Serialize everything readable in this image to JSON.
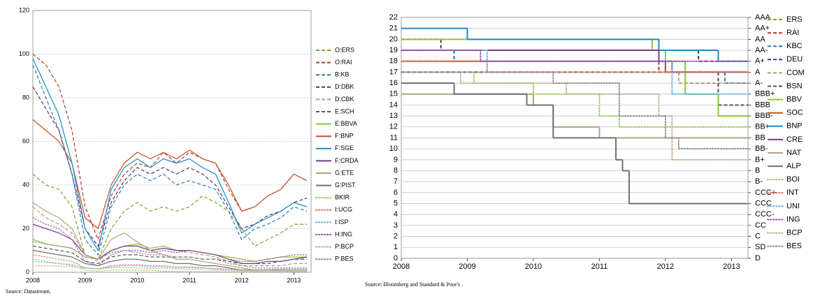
{
  "chart_data": [
    {
      "type": "line",
      "note": "Source: Datastream.",
      "x": [
        2008,
        2008.25,
        2008.5,
        2008.75,
        2009,
        2009.25,
        2009.5,
        2009.75,
        2010,
        2010.25,
        2010.5,
        2010.75,
        2011,
        2011.25,
        2011.5,
        2011.75,
        2012,
        2012.25,
        2012.5,
        2012.75,
        2013,
        2013.25
      ],
      "xlim": [
        2008,
        2013.33
      ],
      "xticks": [
        2008,
        2009,
        2010,
        2011,
        2012,
        2013
      ],
      "ylim": [
        0,
        120
      ],
      "yticks": [
        0,
        20,
        40,
        60,
        80,
        100,
        120
      ],
      "grid": true,
      "series": [
        {
          "name": "O:ERS",
          "color": "#8a9a2a",
          "style": "dashed",
          "values": [
            45,
            40,
            38,
            30,
            8,
            6,
            20,
            28,
            32,
            28,
            30,
            28,
            30,
            35,
            32,
            28,
            20,
            12,
            15,
            18,
            22,
            22
          ]
        },
        {
          "name": "O:RAI",
          "color": "#b23a2a",
          "style": "dashed",
          "values": [
            100,
            95,
            85,
            65,
            30,
            15,
            35,
            45,
            50,
            48,
            55,
            50,
            55,
            52,
            50,
            38,
            28,
            30,
            35,
            38,
            45,
            42
          ]
        },
        {
          "name": "B:KB",
          "color": "#2a7ab8",
          "style": "dashed",
          "values": [
            95,
            80,
            65,
            45,
            15,
            8,
            30,
            40,
            45,
            42,
            45,
            40,
            42,
            40,
            38,
            28,
            15,
            20,
            22,
            25,
            30,
            28
          ]
        },
        {
          "name": "D:DBK",
          "color": "#5a2a6a",
          "style": "dashed",
          "values": [
            85,
            75,
            65,
            45,
            20,
            12,
            32,
            42,
            48,
            45,
            48,
            45,
            48,
            45,
            40,
            30,
            20,
            22,
            26,
            28,
            32,
            34
          ]
        },
        {
          "name": "D:CBK",
          "color": "#b09a7a",
          "style": "dashed",
          "values": [
            30,
            25,
            22,
            18,
            8,
            5,
            10,
            12,
            12,
            10,
            11,
            10,
            9,
            8,
            7,
            5,
            3,
            3,
            3,
            3,
            4,
            4
          ]
        },
        {
          "name": "E:SCH",
          "color": "#555555",
          "style": "dashed",
          "values": [
            12,
            11,
            10,
            9,
            5,
            4,
            7,
            8,
            8,
            7,
            7,
            7,
            7,
            6,
            6,
            5,
            4,
            4,
            4,
            5,
            6,
            6
          ]
        },
        {
          "name": "E:BBVA",
          "color": "#8cc43a",
          "style": "solid",
          "values": [
            15,
            13,
            12,
            11,
            7,
            6,
            10,
            12,
            13,
            11,
            12,
            10,
            10,
            9,
            8,
            7,
            6,
            5,
            6,
            7,
            7,
            7
          ]
        },
        {
          "name": "F:BNP",
          "color": "#c0502a",
          "style": "solid",
          "values": [
            70,
            65,
            60,
            50,
            25,
            20,
            40,
            50,
            55,
            52,
            55,
            52,
            56,
            52,
            50,
            40,
            28,
            30,
            35,
            38,
            45,
            42
          ]
        },
        {
          "name": "F:SGE",
          "color": "#1a8ac8",
          "style": "solid",
          "values": [
            98,
            85,
            72,
            50,
            20,
            10,
            38,
            48,
            52,
            48,
            52,
            50,
            52,
            48,
            45,
            32,
            18,
            22,
            25,
            28,
            32,
            30
          ]
        },
        {
          "name": "F:CRDA",
          "color": "#7a3a8a",
          "style": "solid",
          "values": [
            22,
            20,
            18,
            15,
            8,
            6,
            10,
            12,
            12,
            10,
            11,
            10,
            10,
            9,
            8,
            6,
            4,
            4,
            5,
            5,
            6,
            7
          ]
        },
        {
          "name": "G:ETE",
          "color": "#b8a080",
          "style": "solid",
          "values": [
            32,
            28,
            25,
            20,
            8,
            6,
            15,
            18,
            14,
            10,
            8,
            6,
            6,
            5,
            4,
            3,
            2,
            1,
            1,
            1,
            1,
            1
          ]
        },
        {
          "name": "G:PIST",
          "color": "#707070",
          "style": "solid",
          "values": [
            10,
            9,
            8,
            7,
            4,
            3,
            5,
            6,
            6,
            5,
            5,
            4,
            4,
            3,
            3,
            2,
            1,
            1,
            1,
            1,
            1,
            1
          ]
        },
        {
          "name": "BKIR",
          "color": "#9acc60",
          "style": "dotted",
          "values": [
            6,
            5,
            4,
            3,
            1,
            0.5,
            1,
            1,
            1,
            1,
            0.5,
            0.4,
            0.3,
            0.3,
            0.3,
            0.2,
            0.2,
            0.2,
            0.2,
            0.3,
            0.3,
            0.3
          ]
        },
        {
          "name": "I:UCG",
          "color": "#e07a6a",
          "style": "dotted",
          "values": [
            8,
            7,
            6,
            5,
            2,
            1.5,
            3,
            3.5,
            3.5,
            3,
            3,
            2.5,
            2.5,
            2,
            1.5,
            1,
            1,
            1,
            1,
            1,
            1,
            1
          ]
        },
        {
          "name": "I:ISP",
          "color": "#6ab8e8",
          "style": "dotted",
          "values": [
            5,
            4.5,
            4,
            3.5,
            2,
            1.5,
            2.5,
            3,
            3,
            2.5,
            2.5,
            2,
            2,
            2,
            1.8,
            1.5,
            1.2,
            1.2,
            1.3,
            1.5,
            1.7,
            1.7
          ]
        },
        {
          "name": "H:ING",
          "color": "#9a5aa8",
          "style": "dotted",
          "values": [
            25,
            22,
            20,
            15,
            5,
            3,
            8,
            10,
            10,
            9,
            10,
            9,
            10,
            9,
            8,
            6,
            5,
            5,
            6,
            7,
            8,
            8
          ]
        },
        {
          "name": "P:BCP",
          "color": "#c8b090",
          "style": "dotted",
          "values": [
            3,
            3,
            2.8,
            2.5,
            1.8,
            1.5,
            2,
            2.2,
            2,
            1.8,
            1.8,
            1.5,
            1.3,
            1.2,
            1,
            0.8,
            0.5,
            0.5,
            0.4,
            0.4,
            0.4,
            0.4
          ]
        },
        {
          "name": "P:BES",
          "color": "#909090",
          "style": "dotted",
          "values": [
            14,
            13,
            12,
            11,
            7,
            6,
            9,
            10,
            9,
            8,
            8,
            7,
            7,
            6,
            6,
            4,
            3,
            2,
            2,
            2,
            2,
            2
          ]
        }
      ]
    },
    {
      "type": "line",
      "step": true,
      "note": "Source: Bloomberg and Standard & Poor's .",
      "xlim": [
        2008,
        2013.25
      ],
      "xticks": [
        2008,
        2009,
        2010,
        2011,
        2012,
        2013
      ],
      "ylim": [
        0,
        22
      ],
      "yticks": [
        0,
        1,
        2,
        3,
        4,
        5,
        6,
        7,
        8,
        9,
        10,
        11,
        12,
        13,
        14,
        15,
        16,
        17,
        18,
        19,
        20,
        21,
        22
      ],
      "grid": true,
      "y2lim": [
        0,
        22
      ],
      "y2ticks": [
        {
          "value": 22,
          "label": "AAA"
        },
        {
          "value": 21,
          "label": "AA+"
        },
        {
          "value": 20,
          "label": "AA"
        },
        {
          "value": 19,
          "label": "AA-"
        },
        {
          "value": 18,
          "label": "A+"
        },
        {
          "value": 17,
          "label": "A"
        },
        {
          "value": 16,
          "label": "A-"
        },
        {
          "value": 15,
          "label": "BBB+"
        },
        {
          "value": 14,
          "label": "BBB"
        },
        {
          "value": 13,
          "label": "BBB-"
        },
        {
          "value": 12,
          "label": "BB+"
        },
        {
          "value": 11,
          "label": "BB"
        },
        {
          "value": 10,
          "label": "BB-"
        },
        {
          "value": 9,
          "label": "B+"
        },
        {
          "value": 8,
          "label": "B"
        },
        {
          "value": 7,
          "label": "B-"
        },
        {
          "value": 6,
          "label": "CCC+"
        },
        {
          "value": 5,
          "label": "CCC"
        },
        {
          "value": 4,
          "label": "CCC-"
        },
        {
          "value": 3,
          "label": "CC"
        },
        {
          "value": 2,
          "label": "C"
        },
        {
          "value": 1,
          "label": "SD"
        },
        {
          "value": 0,
          "label": "D"
        }
      ],
      "series": [
        {
          "name": "ERS",
          "color": "#8a9a2a",
          "style": "dashed",
          "x": [
            2008
          ],
          "values": [
            17
          ]
        },
        {
          "name": "RAI",
          "color": "#b23a2a",
          "style": "dashed",
          "x": [
            2008,
            2011.9
          ],
          "values": [
            18,
            17
          ]
        },
        {
          "name": "KBC",
          "color": "#2a7ab8",
          "style": "dashed",
          "x": [
            2008,
            2008.8,
            2012.0,
            2012.9
          ],
          "values": [
            19,
            18,
            17,
            16
          ]
        },
        {
          "name": "DEU",
          "color": "#5a2a6a",
          "style": "dashed",
          "x": [
            2008,
            2008.6,
            2012.5
          ],
          "values": [
            20,
            19,
            18
          ]
        },
        {
          "name": "COM",
          "color": "#b09a7a",
          "style": "dashed",
          "x": [
            2008,
            2012.2
          ],
          "values": [
            17,
            16
          ]
        },
        {
          "name": "BSN",
          "color": "#555555",
          "style": "dashed",
          "x": [
            2008,
            2012.8
          ],
          "values": [
            17,
            14
          ]
        },
        {
          "name": "BBV",
          "color": "#8cc43a",
          "style": "solid",
          "x": [
            2008,
            2011.8,
            2012.0,
            2012.3,
            2012.8
          ],
          "values": [
            20,
            19,
            18,
            15,
            13
          ]
        },
        {
          "name": "SOC",
          "color": "#c0502a",
          "style": "solid",
          "x": [
            2008,
            2012.0
          ],
          "values": [
            18,
            17
          ]
        },
        {
          "name": "BNP",
          "color": "#1a8ac8",
          "style": "solid",
          "x": [
            2008,
            2009.0,
            2011.9,
            2012.8
          ],
          "values": [
            21,
            20,
            19,
            18
          ]
        },
        {
          "name": "CRE",
          "color": "#7a3a8a",
          "style": "solid",
          "x": [
            2008,
            2011.9,
            2012.1
          ],
          "values": [
            19,
            18,
            17
          ]
        },
        {
          "name": "NAT",
          "color": "#b8a080",
          "style": "solid",
          "x": [
            2008,
            2010.0,
            2010.3,
            2011.0
          ],
          "values": [
            15,
            14,
            12,
            11
          ]
        },
        {
          "name": "ALP",
          "color": "#707070",
          "style": "solid",
          "x": [
            2008,
            2008.8,
            2009.9,
            2010.3,
            2011.25,
            2011.35,
            2011.45
          ],
          "values": [
            16,
            15,
            14,
            11,
            9,
            8,
            5
          ]
        },
        {
          "name": "BOI",
          "color": "#9acc60",
          "style": "dotted",
          "x": [
            2008,
            2009.1,
            2010.0,
            2011.0,
            2011.3
          ],
          "values": [
            17,
            16,
            15,
            13,
            12
          ]
        },
        {
          "name": "INT",
          "color": "#e07a6a",
          "style": "dotted",
          "x": [
            2008,
            2009.3
          ],
          "values": [
            18,
            17
          ]
        },
        {
          "name": "UNI",
          "color": "#6ab8e8",
          "style": "dotted",
          "x": [
            2008,
            2009.3,
            2012.1
          ],
          "values": [
            19,
            18,
            15
          ]
        },
        {
          "name": "ING",
          "color": "#9a5aa8",
          "style": "dotted",
          "x": [
            2008,
            2009.2
          ],
          "values": [
            19,
            18
          ]
        },
        {
          "name": "BCP",
          "color": "#c8b090",
          "style": "dotted",
          "x": [
            2008,
            2008.9,
            2010.5,
            2011.9,
            2012.1
          ],
          "values": [
            17,
            16,
            15,
            13,
            9
          ]
        },
        {
          "name": "BES",
          "color": "#909090",
          "style": "dotted",
          "x": [
            2008,
            2010.3,
            2011.3,
            2012.0,
            2012.2
          ],
          "values": [
            17,
            16,
            13,
            11,
            10
          ]
        }
      ]
    }
  ]
}
